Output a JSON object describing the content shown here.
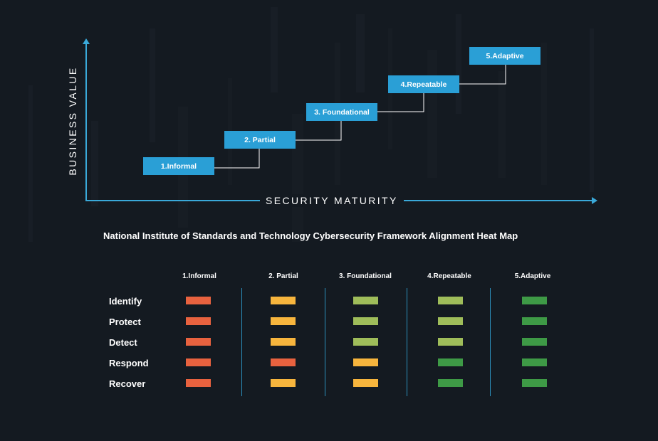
{
  "diagram": {
    "y_axis_label": "BUSINESS VALUE",
    "x_axis_label": "SECURITY MATURITY",
    "stages": [
      "1.Informal",
      "2. Partial",
      "3. Foundational",
      "4.Repeatable",
      "5.Adaptive"
    ]
  },
  "heatmap": {
    "title": "National Institute of Standards and Technology Cybersecurity Framework Alignment Heat Map",
    "columns": [
      "1.Informal",
      "2. Partial",
      "3. Foundational",
      "4.Repeatable",
      "5.Adaptive"
    ],
    "rows": [
      {
        "label": "Identify",
        "levels": [
          "red",
          "yellow",
          "lightgreen",
          "lightgreen",
          "green"
        ]
      },
      {
        "label": "Protect",
        "levels": [
          "red",
          "yellow",
          "lightgreen",
          "lightgreen",
          "green"
        ]
      },
      {
        "label": "Detect",
        "levels": [
          "red",
          "yellow",
          "lightgreen",
          "lightgreen",
          "green"
        ]
      },
      {
        "label": "Respond",
        "levels": [
          "red",
          "red",
          "yellow",
          "green",
          "green"
        ]
      },
      {
        "label": "Recover",
        "levels": [
          "red",
          "yellow",
          "yellow",
          "green",
          "green"
        ]
      }
    ],
    "colors": {
      "red": "#e8623f",
      "yellow": "#f7b53d",
      "lightgreen": "#9fbd5a",
      "green": "#3e9a46"
    }
  },
  "colors": {
    "background": "#141a21",
    "accent_blue": "#2a9fd6"
  }
}
